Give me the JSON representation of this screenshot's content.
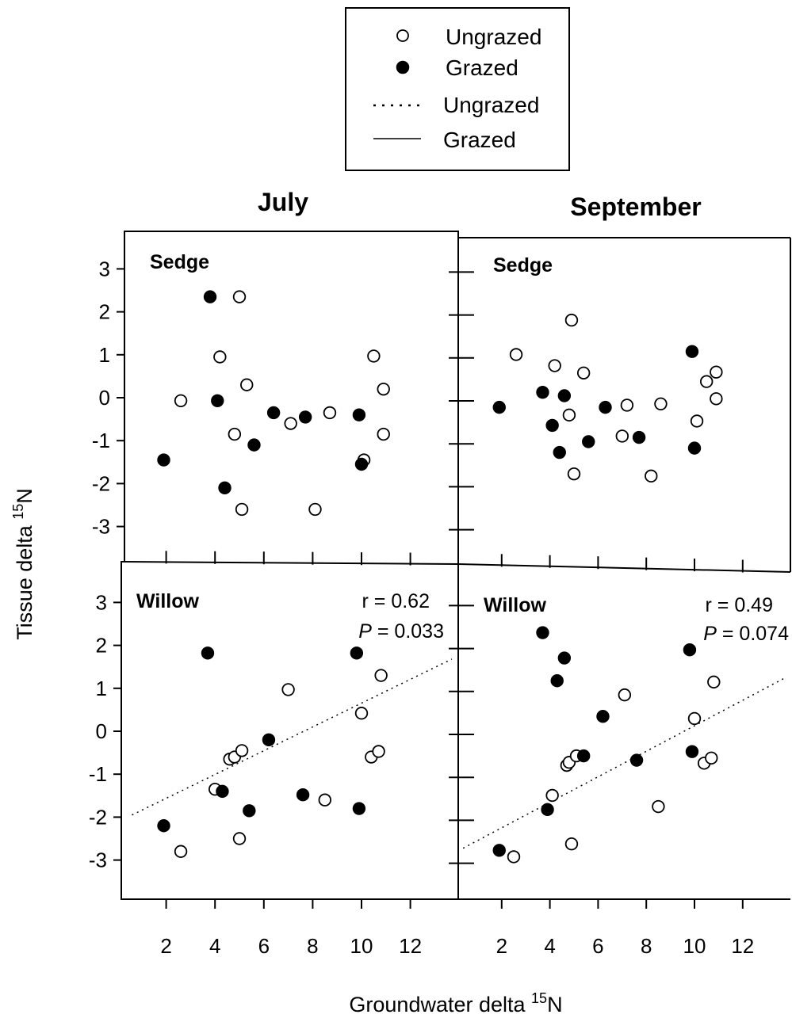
{
  "legend": {
    "points": [
      {
        "label": "Ungrazed",
        "marker": "open-circle"
      },
      {
        "label": "Grazed",
        "marker": "filled-circle"
      }
    ],
    "lines": [
      {
        "label": "Ungrazed",
        "style": "dotted"
      },
      {
        "label": "Grazed",
        "style": "solid"
      }
    ]
  },
  "column_titles": [
    "July",
    "September"
  ],
  "y_label_main": "Tissue delta ",
  "y_label_sup": "15",
  "y_label_tail": "N",
  "x_label_main": "Groundwater delta ",
  "x_label_sup": "15",
  "x_label_tail": "N",
  "colors": {
    "marker": "#000000",
    "frame": "#000000",
    "background": "#ffffff"
  },
  "chart_data": [
    {
      "type": "scatter",
      "panel": "July",
      "label": "Sedge",
      "xlim": [
        0.5,
        13.5
      ],
      "ylim": [
        -4,
        3.6
      ],
      "x_ticks": [
        2,
        4,
        6,
        8,
        10,
        12
      ],
      "y_ticks": [
        3,
        2,
        1,
        0,
        -1,
        -2,
        -3
      ],
      "series": [
        {
          "name": "Ungrazed",
          "marker": "open",
          "x": [
            2.6,
            4.2,
            5.0,
            4.8,
            5.3,
            5.1,
            7.1,
            8.1,
            8.7,
            10.1,
            10.5,
            10.9,
            10.9
          ],
          "y": [
            -0.07,
            0.95,
            2.35,
            -0.85,
            0.3,
            -2.6,
            -0.6,
            -2.6,
            -0.35,
            -1.45,
            0.97,
            0.2,
            -0.85
          ]
        },
        {
          "name": "Grazed",
          "marker": "filled",
          "x": [
            1.9,
            3.8,
            4.1,
            4.4,
            5.6,
            6.4,
            7.7,
            9.9,
            10.0
          ],
          "y": [
            -1.45,
            2.35,
            -0.07,
            -2.1,
            -1.1,
            -0.35,
            -0.45,
            -0.4,
            -1.55
          ]
        }
      ]
    },
    {
      "type": "scatter",
      "panel": "September",
      "label": "Sedge",
      "xlim": [
        0.5,
        13.5
      ],
      "ylim": [
        -4,
        3.6
      ],
      "x_ticks": [
        2,
        4,
        6,
        8,
        10,
        12
      ],
      "y_ticks": [
        3,
        2,
        1,
        0,
        -1,
        -2,
        -3
      ],
      "series": [
        {
          "name": "Ungrazed",
          "marker": "open",
          "x": [
            2.6,
            4.2,
            4.9,
            5.0,
            5.4,
            4.8,
            7.2,
            7.0,
            8.2,
            8.6,
            10.1,
            10.5,
            10.9,
            10.9
          ],
          "y": [
            1.08,
            0.82,
            1.88,
            -1.7,
            0.65,
            -0.33,
            -0.1,
            -0.82,
            -1.75,
            -0.07,
            -0.47,
            0.45,
            0.67,
            0.05
          ]
        },
        {
          "name": "Grazed",
          "marker": "filled",
          "x": [
            1.9,
            3.7,
            4.1,
            4.4,
            4.6,
            5.6,
            6.3,
            7.7,
            9.9,
            10.0
          ],
          "y": [
            -0.15,
            0.2,
            -0.57,
            -1.2,
            0.12,
            -0.95,
            -0.15,
            -0.85,
            1.15,
            -1.1
          ]
        }
      ]
    },
    {
      "type": "scatter",
      "panel": "July",
      "label": "Willow",
      "stats_r": "r = 0.62",
      "stats_p_italic": "P",
      "stats_p_value": " = 0.033",
      "xlim": [
        0.5,
        13.5
      ],
      "ylim": [
        -3.9,
        3.3
      ],
      "x_ticks": [
        2,
        4,
        6,
        8,
        10,
        12
      ],
      "y_ticks": [
        3,
        2,
        1,
        0,
        -1,
        -2,
        -3
      ],
      "fit_line": {
        "series": "Ungrazed",
        "style": "dotted",
        "x": [
          0.6,
          13.7
        ],
        "y": [
          -1.95,
          1.68
        ]
      },
      "series": [
        {
          "name": "Ungrazed",
          "marker": "open",
          "x": [
            2.6,
            4.0,
            4.6,
            4.8,
            5.1,
            5.0,
            7.0,
            8.5,
            10.0,
            10.4,
            10.7,
            10.8
          ],
          "y": [
            -2.8,
            -1.35,
            -0.65,
            -0.6,
            -0.45,
            -2.5,
            0.97,
            -1.6,
            0.42,
            -0.6,
            -0.47,
            1.3
          ]
        },
        {
          "name": "Grazed",
          "marker": "filled",
          "x": [
            1.9,
            3.7,
            4.3,
            5.4,
            6.2,
            7.6,
            9.8,
            9.9
          ],
          "y": [
            -2.2,
            1.82,
            -1.4,
            -1.85,
            -0.2,
            -1.48,
            1.82,
            -1.8
          ]
        }
      ]
    },
    {
      "type": "scatter",
      "panel": "September",
      "label": "Willow",
      "stats_r": "r = 0.49",
      "stats_p_italic": "P",
      "stats_p_value": " = 0.074",
      "xlim": [
        0.5,
        13.5
      ],
      "ylim": [
        -3.9,
        3.3
      ],
      "x_ticks": [
        2,
        4,
        6,
        8,
        10,
        12
      ],
      "y_ticks": [
        3,
        2,
        1,
        0,
        -1,
        -2,
        -3
      ],
      "fit_line": {
        "series": "Ungrazed",
        "style": "dotted",
        "x": [
          0.4,
          13.7
        ],
        "y": [
          -2.65,
          1.3
        ]
      },
      "series": [
        {
          "name": "Ungrazed",
          "marker": "open",
          "x": [
            2.5,
            4.1,
            4.7,
            4.8,
            5.1,
            4.9,
            7.1,
            8.5,
            10.0,
            10.4,
            10.7,
            10.8
          ],
          "y": [
            -2.85,
            -1.42,
            -0.72,
            -0.65,
            -0.5,
            -2.55,
            0.92,
            -1.68,
            0.37,
            -0.67,
            -0.55,
            1.22
          ]
        },
        {
          "name": "Grazed",
          "marker": "filled",
          "x": [
            1.9,
            3.7,
            3.9,
            4.3,
            4.6,
            5.4,
            6.2,
            7.6,
            9.8,
            9.9
          ],
          "y": [
            -2.7,
            2.37,
            -1.75,
            1.25,
            1.78,
            -0.5,
            0.42,
            -0.6,
            1.97,
            -0.4
          ]
        }
      ]
    }
  ]
}
